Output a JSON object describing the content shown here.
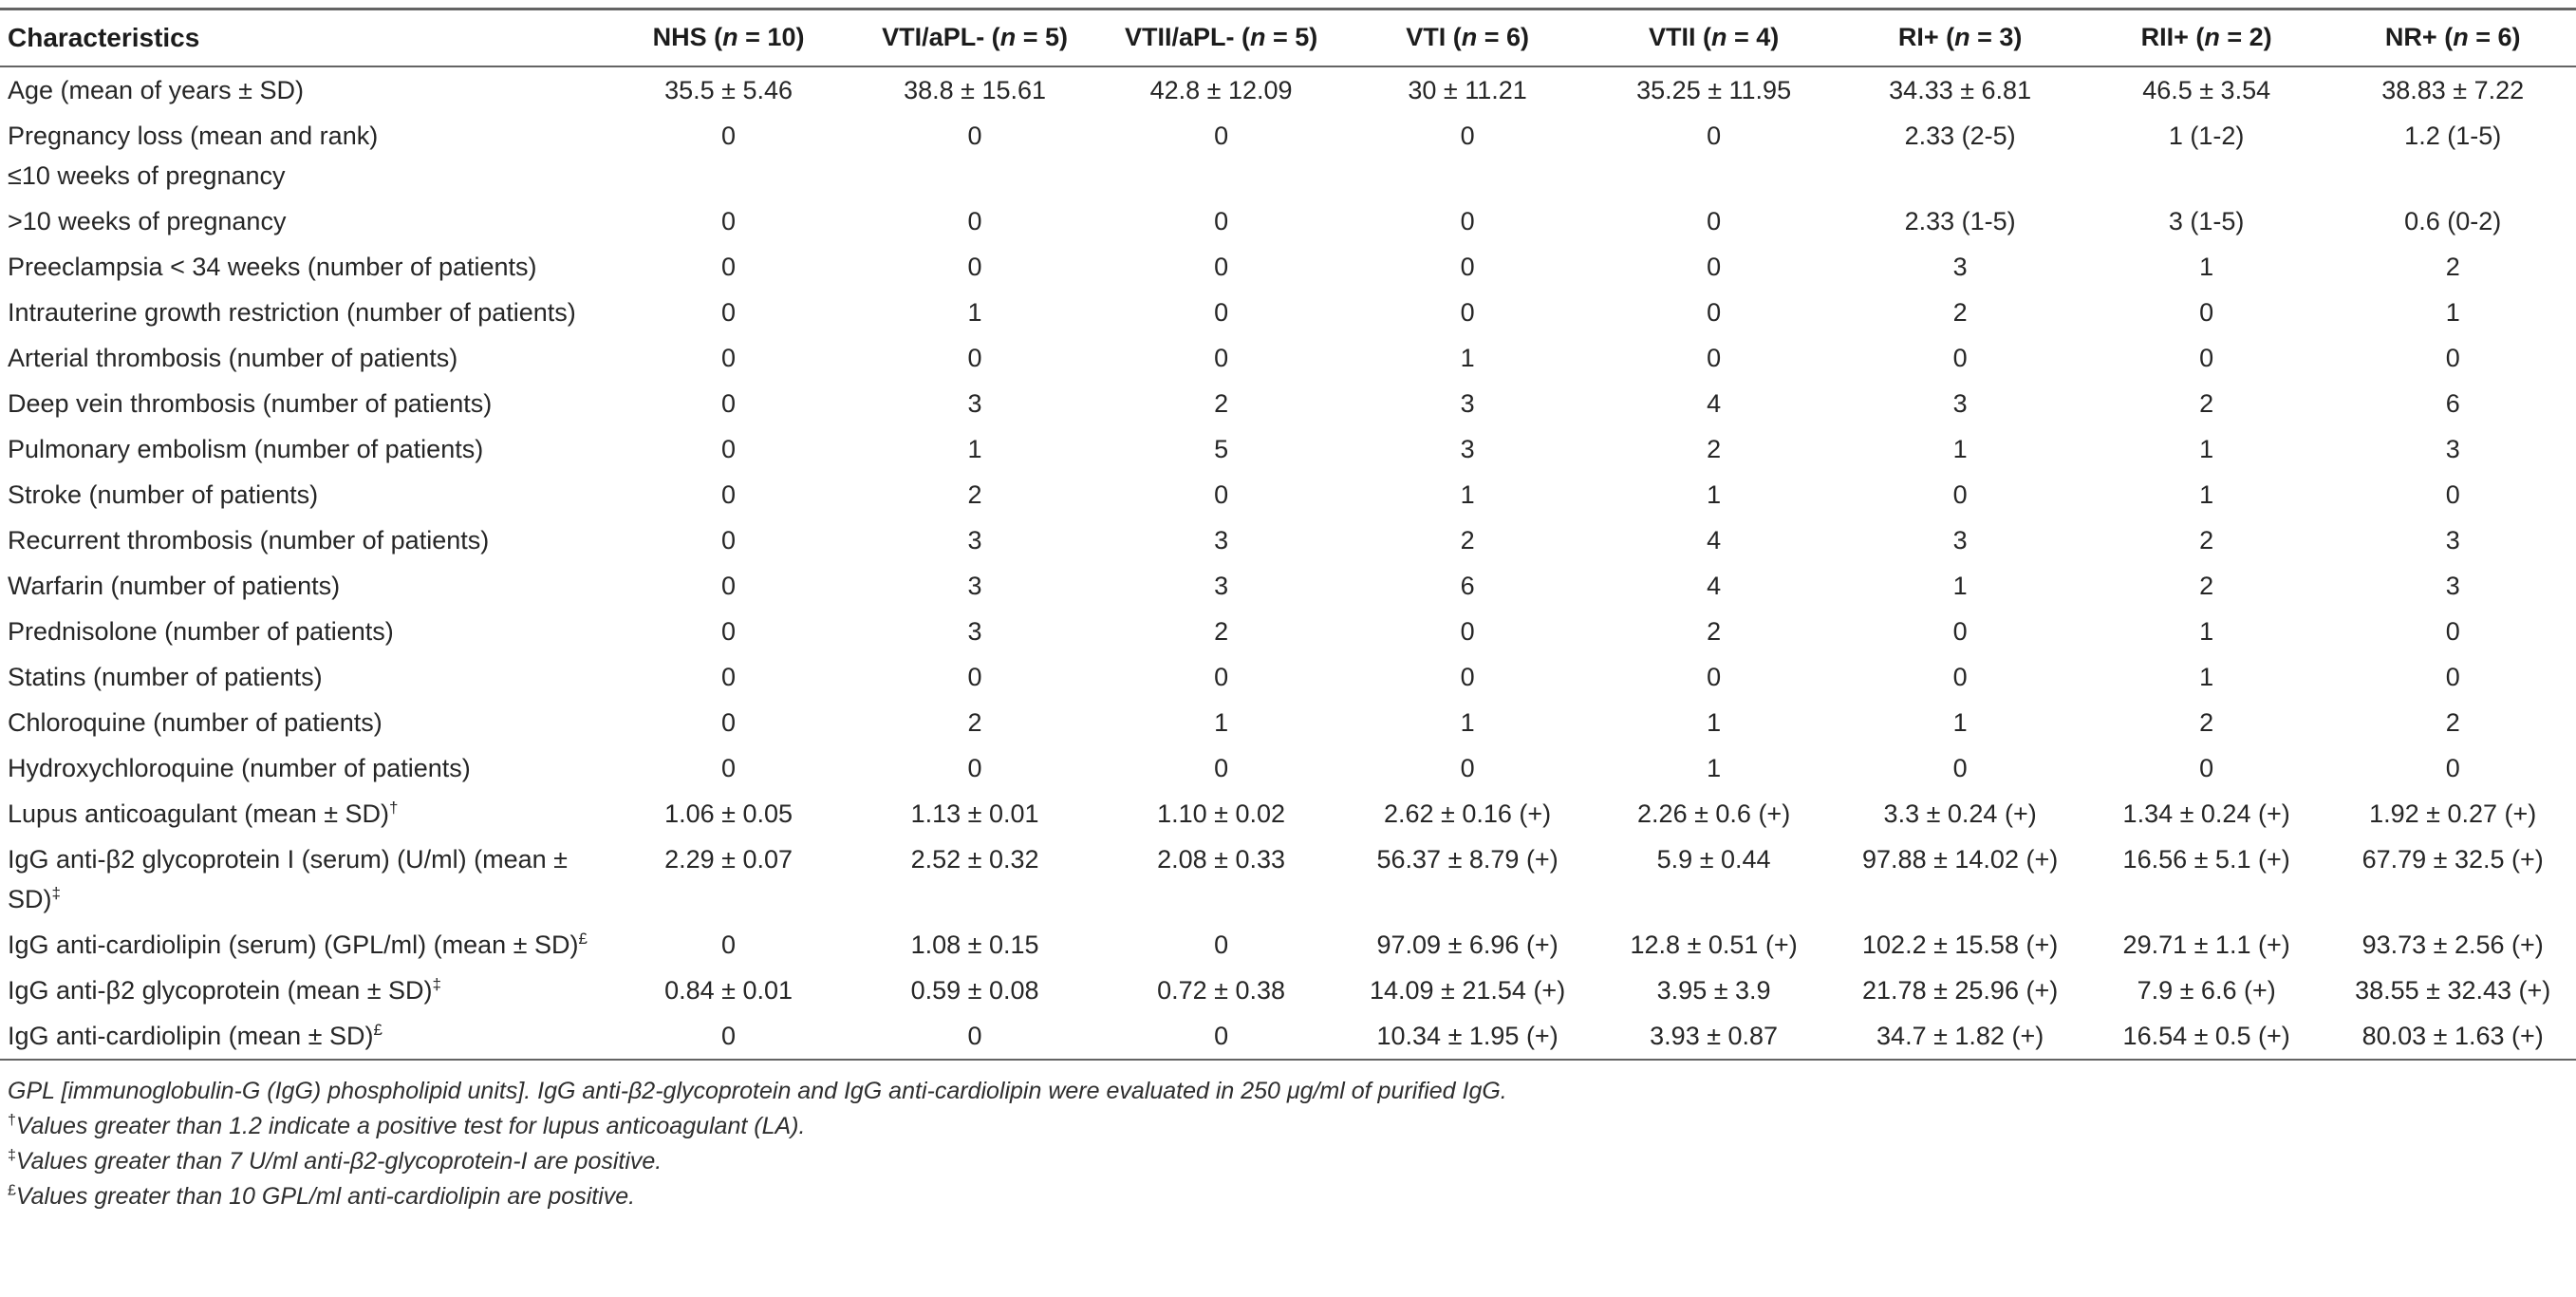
{
  "colors": {
    "background": "#ffffff",
    "text": "#262626",
    "rule": "#646464"
  },
  "table": {
    "header": {
      "first_column": "Characteristics",
      "n_symbol": "n",
      "columns": [
        {
          "group": "NHS",
          "n": "10"
        },
        {
          "group": "VTI/aPL-",
          "n": "5"
        },
        {
          "group": "VTII/aPL-",
          "n": "5"
        },
        {
          "group": "VTI",
          "n": "6"
        },
        {
          "group": "VTII",
          "n": "4"
        },
        {
          "group": "RI+",
          "n": "3"
        },
        {
          "group": "RII+",
          "n": "2"
        },
        {
          "group": "NR+",
          "n": "6"
        }
      ]
    },
    "rows": [
      {
        "label_lines": [
          {
            "text": "Age (mean of years ± SD)"
          }
        ],
        "values": [
          "35.5 ± 5.46",
          "38.8 ± 15.61",
          "42.8 ± 12.09",
          "30 ± 11.21",
          "35.25 ± 11.95",
          "34.33 ± 6.81",
          "46.5 ± 3.54",
          "38.83 ± 7.22"
        ]
      },
      {
        "label_lines": [
          {
            "text": "Pregnancy loss (mean and rank)"
          },
          {
            "text": "≤10 weeks of pregnancy"
          }
        ],
        "values": [
          "0",
          "0",
          "0",
          "0",
          "0",
          "2.33 (2-5)",
          "1 (1-2)",
          "1.2 (1-5)"
        ]
      },
      {
        "label_lines": [
          {
            "text": ">10 weeks of pregnancy"
          }
        ],
        "values": [
          "0",
          "0",
          "0",
          "0",
          "0",
          "2.33 (1-5)",
          "3 (1-5)",
          "0.6 (0-2)"
        ]
      },
      {
        "label_lines": [
          {
            "text": "Preeclampsia < 34 weeks (number of patients)"
          }
        ],
        "values": [
          "0",
          "0",
          "0",
          "0",
          "0",
          "3",
          "1",
          "2"
        ]
      },
      {
        "label_lines": [
          {
            "text": "Intrauterine growth restriction (number of patients)"
          }
        ],
        "values": [
          "0",
          "1",
          "0",
          "0",
          "0",
          "2",
          "0",
          "1"
        ]
      },
      {
        "label_lines": [
          {
            "text": "Arterial thrombosis (number of patients)"
          }
        ],
        "values": [
          "0",
          "0",
          "0",
          "1",
          "0",
          "0",
          "0",
          "0"
        ]
      },
      {
        "label_lines": [
          {
            "text": "Deep vein thrombosis (number of patients)"
          }
        ],
        "values": [
          "0",
          "3",
          "2",
          "3",
          "4",
          "3",
          "2",
          "6"
        ]
      },
      {
        "label_lines": [
          {
            "text": "Pulmonary embolism (number of patients)"
          }
        ],
        "values": [
          "0",
          "1",
          "5",
          "3",
          "2",
          "1",
          "1",
          "3"
        ]
      },
      {
        "label_lines": [
          {
            "text": "Stroke (number of patients)"
          }
        ],
        "values": [
          "0",
          "2",
          "0",
          "1",
          "1",
          "0",
          "1",
          "0"
        ]
      },
      {
        "label_lines": [
          {
            "text": "Recurrent thrombosis (number of patients)"
          }
        ],
        "values": [
          "0",
          "3",
          "3",
          "2",
          "4",
          "3",
          "2",
          "3"
        ]
      },
      {
        "label_lines": [
          {
            "text": "Warfarin (number of patients)"
          }
        ],
        "values": [
          "0",
          "3",
          "3",
          "6",
          "4",
          "1",
          "2",
          "3"
        ]
      },
      {
        "label_lines": [
          {
            "text": "Prednisolone (number of patients)"
          }
        ],
        "values": [
          "0",
          "3",
          "2",
          "0",
          "2",
          "0",
          "1",
          "0"
        ]
      },
      {
        "label_lines": [
          {
            "text": "Statins (number of patients)"
          }
        ],
        "values": [
          "0",
          "0",
          "0",
          "0",
          "0",
          "0",
          "1",
          "0"
        ]
      },
      {
        "label_lines": [
          {
            "text": "Chloroquine (number of patients)"
          }
        ],
        "values": [
          "0",
          "2",
          "1",
          "1",
          "1",
          "1",
          "2",
          "2"
        ]
      },
      {
        "label_lines": [
          {
            "text": "Hydroxychloroquine (number of patients)"
          }
        ],
        "values": [
          "0",
          "0",
          "0",
          "0",
          "1",
          "0",
          "0",
          "0"
        ]
      },
      {
        "label_lines": [
          {
            "text": "Lupus anticoagulant (mean ± SD)",
            "sup": "†"
          }
        ],
        "values": [
          "1.06 ± 0.05",
          "1.13 ± 0.01",
          "1.10 ± 0.02",
          "2.62 ± 0.16 (+)",
          "2.26 ± 0.6 (+)",
          "3.3 ± 0.24 (+)",
          "1.34 ± 0.24 (+)",
          "1.92 ± 0.27 (+)"
        ]
      },
      {
        "label_lines": [
          {
            "text": "IgG anti-β2 glycoprotein I (serum) (U/ml) (mean ± SD)",
            "sup": "‡"
          }
        ],
        "values": [
          "2.29 ± 0.07",
          "2.52 ± 0.32",
          "2.08 ± 0.33",
          "56.37 ± 8.79 (+)",
          "5.9 ± 0.44",
          "97.88 ± 14.02 (+)",
          "16.56 ± 5.1 (+)",
          "67.79 ± 32.5 (+)"
        ]
      },
      {
        "label_lines": [
          {
            "text": "IgG anti-cardiolipin (serum) (GPL/ml) (mean ± SD)",
            "sup": "£"
          }
        ],
        "values": [
          "0",
          "1.08 ± 0.15",
          "0",
          "97.09 ± 6.96 (+)",
          "12.8 ± 0.51 (+)",
          "102.2 ± 15.58 (+)",
          "29.71 ± 1.1 (+)",
          "93.73 ± 2.56 (+)"
        ]
      },
      {
        "label_lines": [
          {
            "text": "IgG anti-β2 glycoprotein (mean ± SD)",
            "sup": "‡"
          }
        ],
        "values": [
          "0.84 ± 0.01",
          "0.59 ± 0.08",
          "0.72 ± 0.38",
          "14.09 ± 21.54 (+)",
          "3.95 ± 3.9",
          "21.78 ± 25.96 (+)",
          "7.9 ± 6.6 (+)",
          "38.55 ± 32.43 (+)"
        ]
      },
      {
        "label_lines": [
          {
            "text": "IgG anti-cardiolipin (mean ± SD)",
            "sup": "£"
          }
        ],
        "values": [
          "0",
          "0",
          "0",
          "10.34 ± 1.95 (+)",
          "3.93 ± 0.87",
          "34.7 ± 1.82 (+)",
          "16.54 ± 0.5 (+)",
          "80.03 ± 1.63 (+)"
        ]
      }
    ],
    "footnotes": [
      {
        "sup": null,
        "text": "GPL [immunoglobulin-G (IgG) phospholipid units]. IgG anti-β2-glycoprotein and IgG anti-cardiolipin were evaluated in 250 μg/ml of purified IgG."
      },
      {
        "sup": "†",
        "text": "Values greater than 1.2 indicate a positive test for lupus anticoagulant (LA)."
      },
      {
        "sup": "‡",
        "text": "Values greater than 7 U/ml anti-β2-glycoprotein-I are positive."
      },
      {
        "sup": "£",
        "text": "Values greater than 10 GPL/ml anti-cardiolipin are positive."
      }
    ]
  }
}
